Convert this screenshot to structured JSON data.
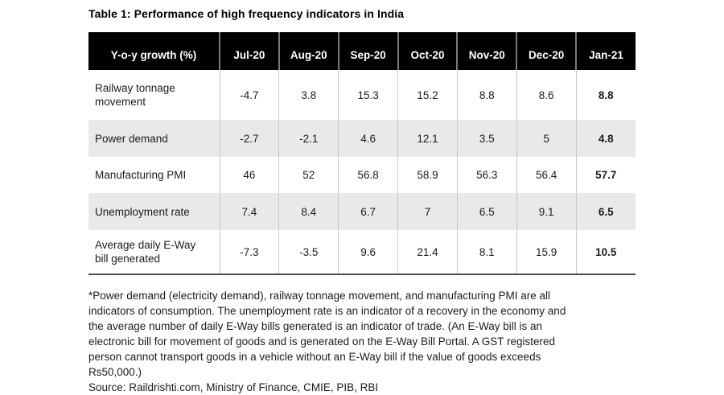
{
  "title": "Table 1: Performance of high frequency indicators in India",
  "table": {
    "columns": [
      "Y-o-y growth (%)",
      "Jul-20",
      "Aug-20",
      "Sep-20",
      "Oct-20",
      "Nov-20",
      "Dec-20",
      "Jan-21"
    ],
    "rows": [
      {
        "label": "Railway tonnage movement",
        "values": [
          "-4.7",
          "3.8",
          "15.3",
          "15.2",
          "8.8",
          "8.6",
          "8.8"
        ]
      },
      {
        "label": "Power demand",
        "values": [
          "-2.7",
          "-2.1",
          "4.6",
          "12.1",
          "3.5",
          "5",
          "4.8"
        ]
      },
      {
        "label": "Manufacturing PMI",
        "values": [
          "46",
          "52",
          "56.8",
          "58.9",
          "56.3",
          "56.4",
          "57.7"
        ]
      },
      {
        "label": "Unemployment rate",
        "values": [
          "7.4",
          "8.4",
          "6.7",
          "7",
          "6.5",
          "9.1",
          "6.5"
        ]
      },
      {
        "label": "Average daily E-Way bill generated",
        "values": [
          "-7.3",
          "-3.5",
          "9.6",
          "21.4",
          "8.1",
          "15.9",
          "10.5"
        ]
      }
    ]
  },
  "footnote": "*Power demand (electricity demand), railway tonnage movement, and manufacturing PMI are all indicators of consumption. The unemployment rate is an indicator of a recovery in the economy and the average number of daily E-Way bills generated is an indicator of trade. (An E-Way bill is an electronic bill for movement of goods and is generated on the E-Way Bill Portal. A GST registered person cannot transport goods in a vehicle without an E-Way bill if the value of goods exceeds Rs50,000.)",
  "source": "Source: Raildrishti.com, Ministry of Finance, CMIE, PIB, RBI",
  "colors": {
    "header_bg": "#000000",
    "header_text": "#ffffff",
    "header_divider": "#7a7a7a",
    "row_alt_bg": "#e9e9e9",
    "gridline": "#c8c8c8",
    "bottom_border": "#4d4d4d"
  }
}
